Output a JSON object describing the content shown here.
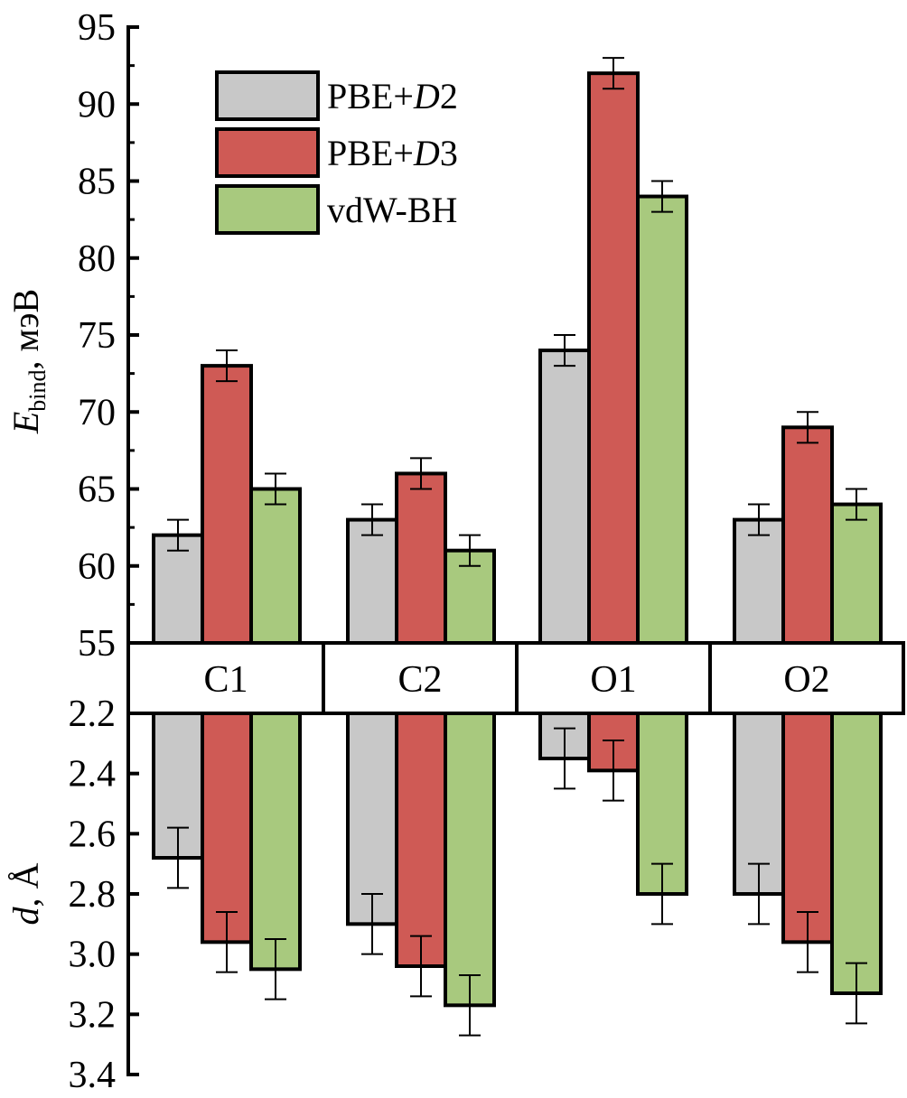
{
  "chart_data": {
    "type": "bar",
    "categories": [
      "C1",
      "C2",
      "O1",
      "O2"
    ],
    "legend": {
      "placement": "top-left",
      "entries": [
        {
          "label_pre": "PBE+",
          "label_it": "D",
          "label_post": "2",
          "color": "#c8c8c8"
        },
        {
          "label_pre": "PBE+",
          "label_it": "D",
          "label_post": "3",
          "color": "#cf5a55"
        },
        {
          "label_pre": "vdW-BH",
          "label_it": "",
          "label_post": "",
          "color": "#a8c97e"
        }
      ]
    },
    "top_panel": {
      "ylabel_main": "E",
      "ylabel_sub": "bind",
      "ylabel_unit": ", мэВ",
      "ylim": [
        55,
        95
      ],
      "ticks": [
        "55",
        "60",
        "65",
        "70",
        "75",
        "80",
        "85",
        "90",
        "95"
      ],
      "series": [
        {
          "name": "PBE+D2",
          "values": [
            62,
            63,
            74,
            63
          ],
          "error": 1
        },
        {
          "name": "PBE+D3",
          "values": [
            73,
            66,
            92,
            69
          ],
          "error": 1
        },
        {
          "name": "vdW-BH",
          "values": [
            65,
            61,
            84,
            64
          ],
          "error": 1
        }
      ]
    },
    "bottom_panel": {
      "ylabel_main": "d",
      "ylabel_unit": ", Å",
      "ylim": [
        2.2,
        3.4
      ],
      "inverted": true,
      "ticks": [
        "2.2",
        "2.4",
        "2.6",
        "2.8",
        "3.0",
        "3.2",
        "3.4"
      ],
      "series": [
        {
          "name": "PBE+D2",
          "values": [
            2.68,
            2.9,
            2.35,
            2.8
          ],
          "error": 0.1
        },
        {
          "name": "PBE+D3",
          "values": [
            2.96,
            3.04,
            2.39,
            2.96
          ],
          "error": 0.1
        },
        {
          "name": "vdW-BH",
          "values": [
            3.05,
            3.17,
            2.8,
            3.13
          ],
          "error": 0.1
        }
      ]
    }
  }
}
